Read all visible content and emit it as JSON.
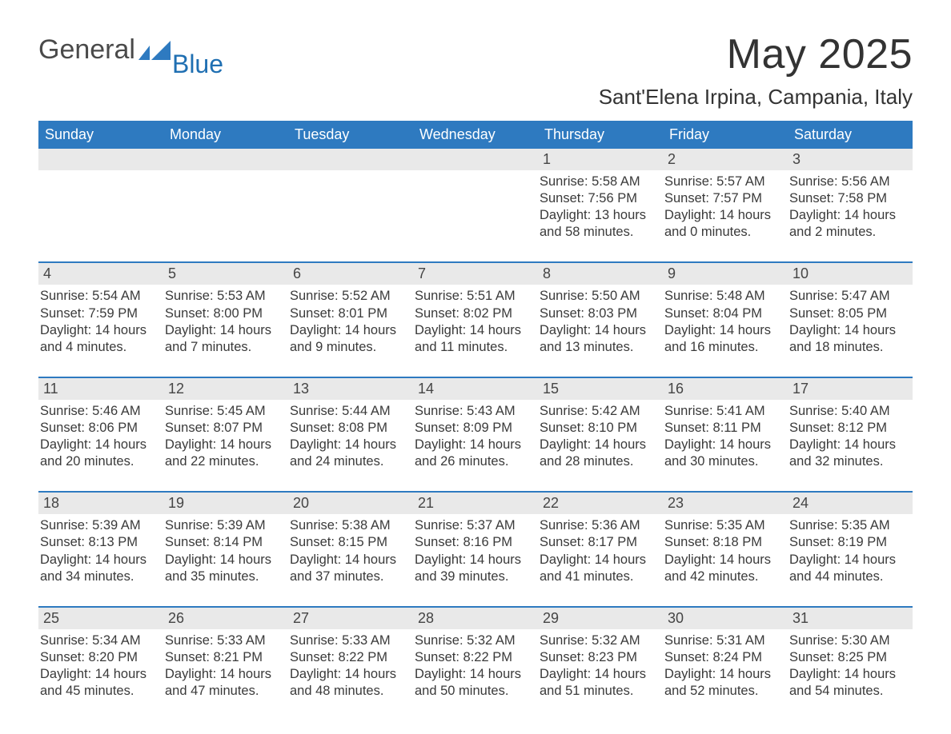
{
  "brand": {
    "name_a": "General",
    "name_b": "Blue"
  },
  "title": "May 2025",
  "location": "Sant'Elena Irpina, Campania, Italy",
  "colors": {
    "header_bg": "#2e7ac0",
    "header_text": "#ffffff",
    "daynum_bg": "#e9e9e9",
    "text": "#3a3a3a",
    "accent": "#1f6fb2",
    "background": "#ffffff"
  },
  "days_of_week": [
    "Sunday",
    "Monday",
    "Tuesday",
    "Wednesday",
    "Thursday",
    "Friday",
    "Saturday"
  ],
  "weeks": [
    [
      null,
      null,
      null,
      null,
      {
        "d": "1",
        "sunrise": "5:58 AM",
        "sunset": "7:56 PM",
        "daylight": "13 hours and 58 minutes."
      },
      {
        "d": "2",
        "sunrise": "5:57 AM",
        "sunset": "7:57 PM",
        "daylight": "14 hours and 0 minutes."
      },
      {
        "d": "3",
        "sunrise": "5:56 AM",
        "sunset": "7:58 PM",
        "daylight": "14 hours and 2 minutes."
      }
    ],
    [
      {
        "d": "4",
        "sunrise": "5:54 AM",
        "sunset": "7:59 PM",
        "daylight": "14 hours and 4 minutes."
      },
      {
        "d": "5",
        "sunrise": "5:53 AM",
        "sunset": "8:00 PM",
        "daylight": "14 hours and 7 minutes."
      },
      {
        "d": "6",
        "sunrise": "5:52 AM",
        "sunset": "8:01 PM",
        "daylight": "14 hours and 9 minutes."
      },
      {
        "d": "7",
        "sunrise": "5:51 AM",
        "sunset": "8:02 PM",
        "daylight": "14 hours and 11 minutes."
      },
      {
        "d": "8",
        "sunrise": "5:50 AM",
        "sunset": "8:03 PM",
        "daylight": "14 hours and 13 minutes."
      },
      {
        "d": "9",
        "sunrise": "5:48 AM",
        "sunset": "8:04 PM",
        "daylight": "14 hours and 16 minutes."
      },
      {
        "d": "10",
        "sunrise": "5:47 AM",
        "sunset": "8:05 PM",
        "daylight": "14 hours and 18 minutes."
      }
    ],
    [
      {
        "d": "11",
        "sunrise": "5:46 AM",
        "sunset": "8:06 PM",
        "daylight": "14 hours and 20 minutes."
      },
      {
        "d": "12",
        "sunrise": "5:45 AM",
        "sunset": "8:07 PM",
        "daylight": "14 hours and 22 minutes."
      },
      {
        "d": "13",
        "sunrise": "5:44 AM",
        "sunset": "8:08 PM",
        "daylight": "14 hours and 24 minutes."
      },
      {
        "d": "14",
        "sunrise": "5:43 AM",
        "sunset": "8:09 PM",
        "daylight": "14 hours and 26 minutes."
      },
      {
        "d": "15",
        "sunrise": "5:42 AM",
        "sunset": "8:10 PM",
        "daylight": "14 hours and 28 minutes."
      },
      {
        "d": "16",
        "sunrise": "5:41 AM",
        "sunset": "8:11 PM",
        "daylight": "14 hours and 30 minutes."
      },
      {
        "d": "17",
        "sunrise": "5:40 AM",
        "sunset": "8:12 PM",
        "daylight": "14 hours and 32 minutes."
      }
    ],
    [
      {
        "d": "18",
        "sunrise": "5:39 AM",
        "sunset": "8:13 PM",
        "daylight": "14 hours and 34 minutes."
      },
      {
        "d": "19",
        "sunrise": "5:39 AM",
        "sunset": "8:14 PM",
        "daylight": "14 hours and 35 minutes."
      },
      {
        "d": "20",
        "sunrise": "5:38 AM",
        "sunset": "8:15 PM",
        "daylight": "14 hours and 37 minutes."
      },
      {
        "d": "21",
        "sunrise": "5:37 AM",
        "sunset": "8:16 PM",
        "daylight": "14 hours and 39 minutes."
      },
      {
        "d": "22",
        "sunrise": "5:36 AM",
        "sunset": "8:17 PM",
        "daylight": "14 hours and 41 minutes."
      },
      {
        "d": "23",
        "sunrise": "5:35 AM",
        "sunset": "8:18 PM",
        "daylight": "14 hours and 42 minutes."
      },
      {
        "d": "24",
        "sunrise": "5:35 AM",
        "sunset": "8:19 PM",
        "daylight": "14 hours and 44 minutes."
      }
    ],
    [
      {
        "d": "25",
        "sunrise": "5:34 AM",
        "sunset": "8:20 PM",
        "daylight": "14 hours and 45 minutes."
      },
      {
        "d": "26",
        "sunrise": "5:33 AM",
        "sunset": "8:21 PM",
        "daylight": "14 hours and 47 minutes."
      },
      {
        "d": "27",
        "sunrise": "5:33 AM",
        "sunset": "8:22 PM",
        "daylight": "14 hours and 48 minutes."
      },
      {
        "d": "28",
        "sunrise": "5:32 AM",
        "sunset": "8:22 PM",
        "daylight": "14 hours and 50 minutes."
      },
      {
        "d": "29",
        "sunrise": "5:32 AM",
        "sunset": "8:23 PM",
        "daylight": "14 hours and 51 minutes."
      },
      {
        "d": "30",
        "sunrise": "5:31 AM",
        "sunset": "8:24 PM",
        "daylight": "14 hours and 52 minutes."
      },
      {
        "d": "31",
        "sunrise": "5:30 AM",
        "sunset": "8:25 PM",
        "daylight": "14 hours and 54 minutes."
      }
    ]
  ],
  "labels": {
    "sunrise": "Sunrise: ",
    "sunset": "Sunset: ",
    "daylight": "Daylight: "
  }
}
